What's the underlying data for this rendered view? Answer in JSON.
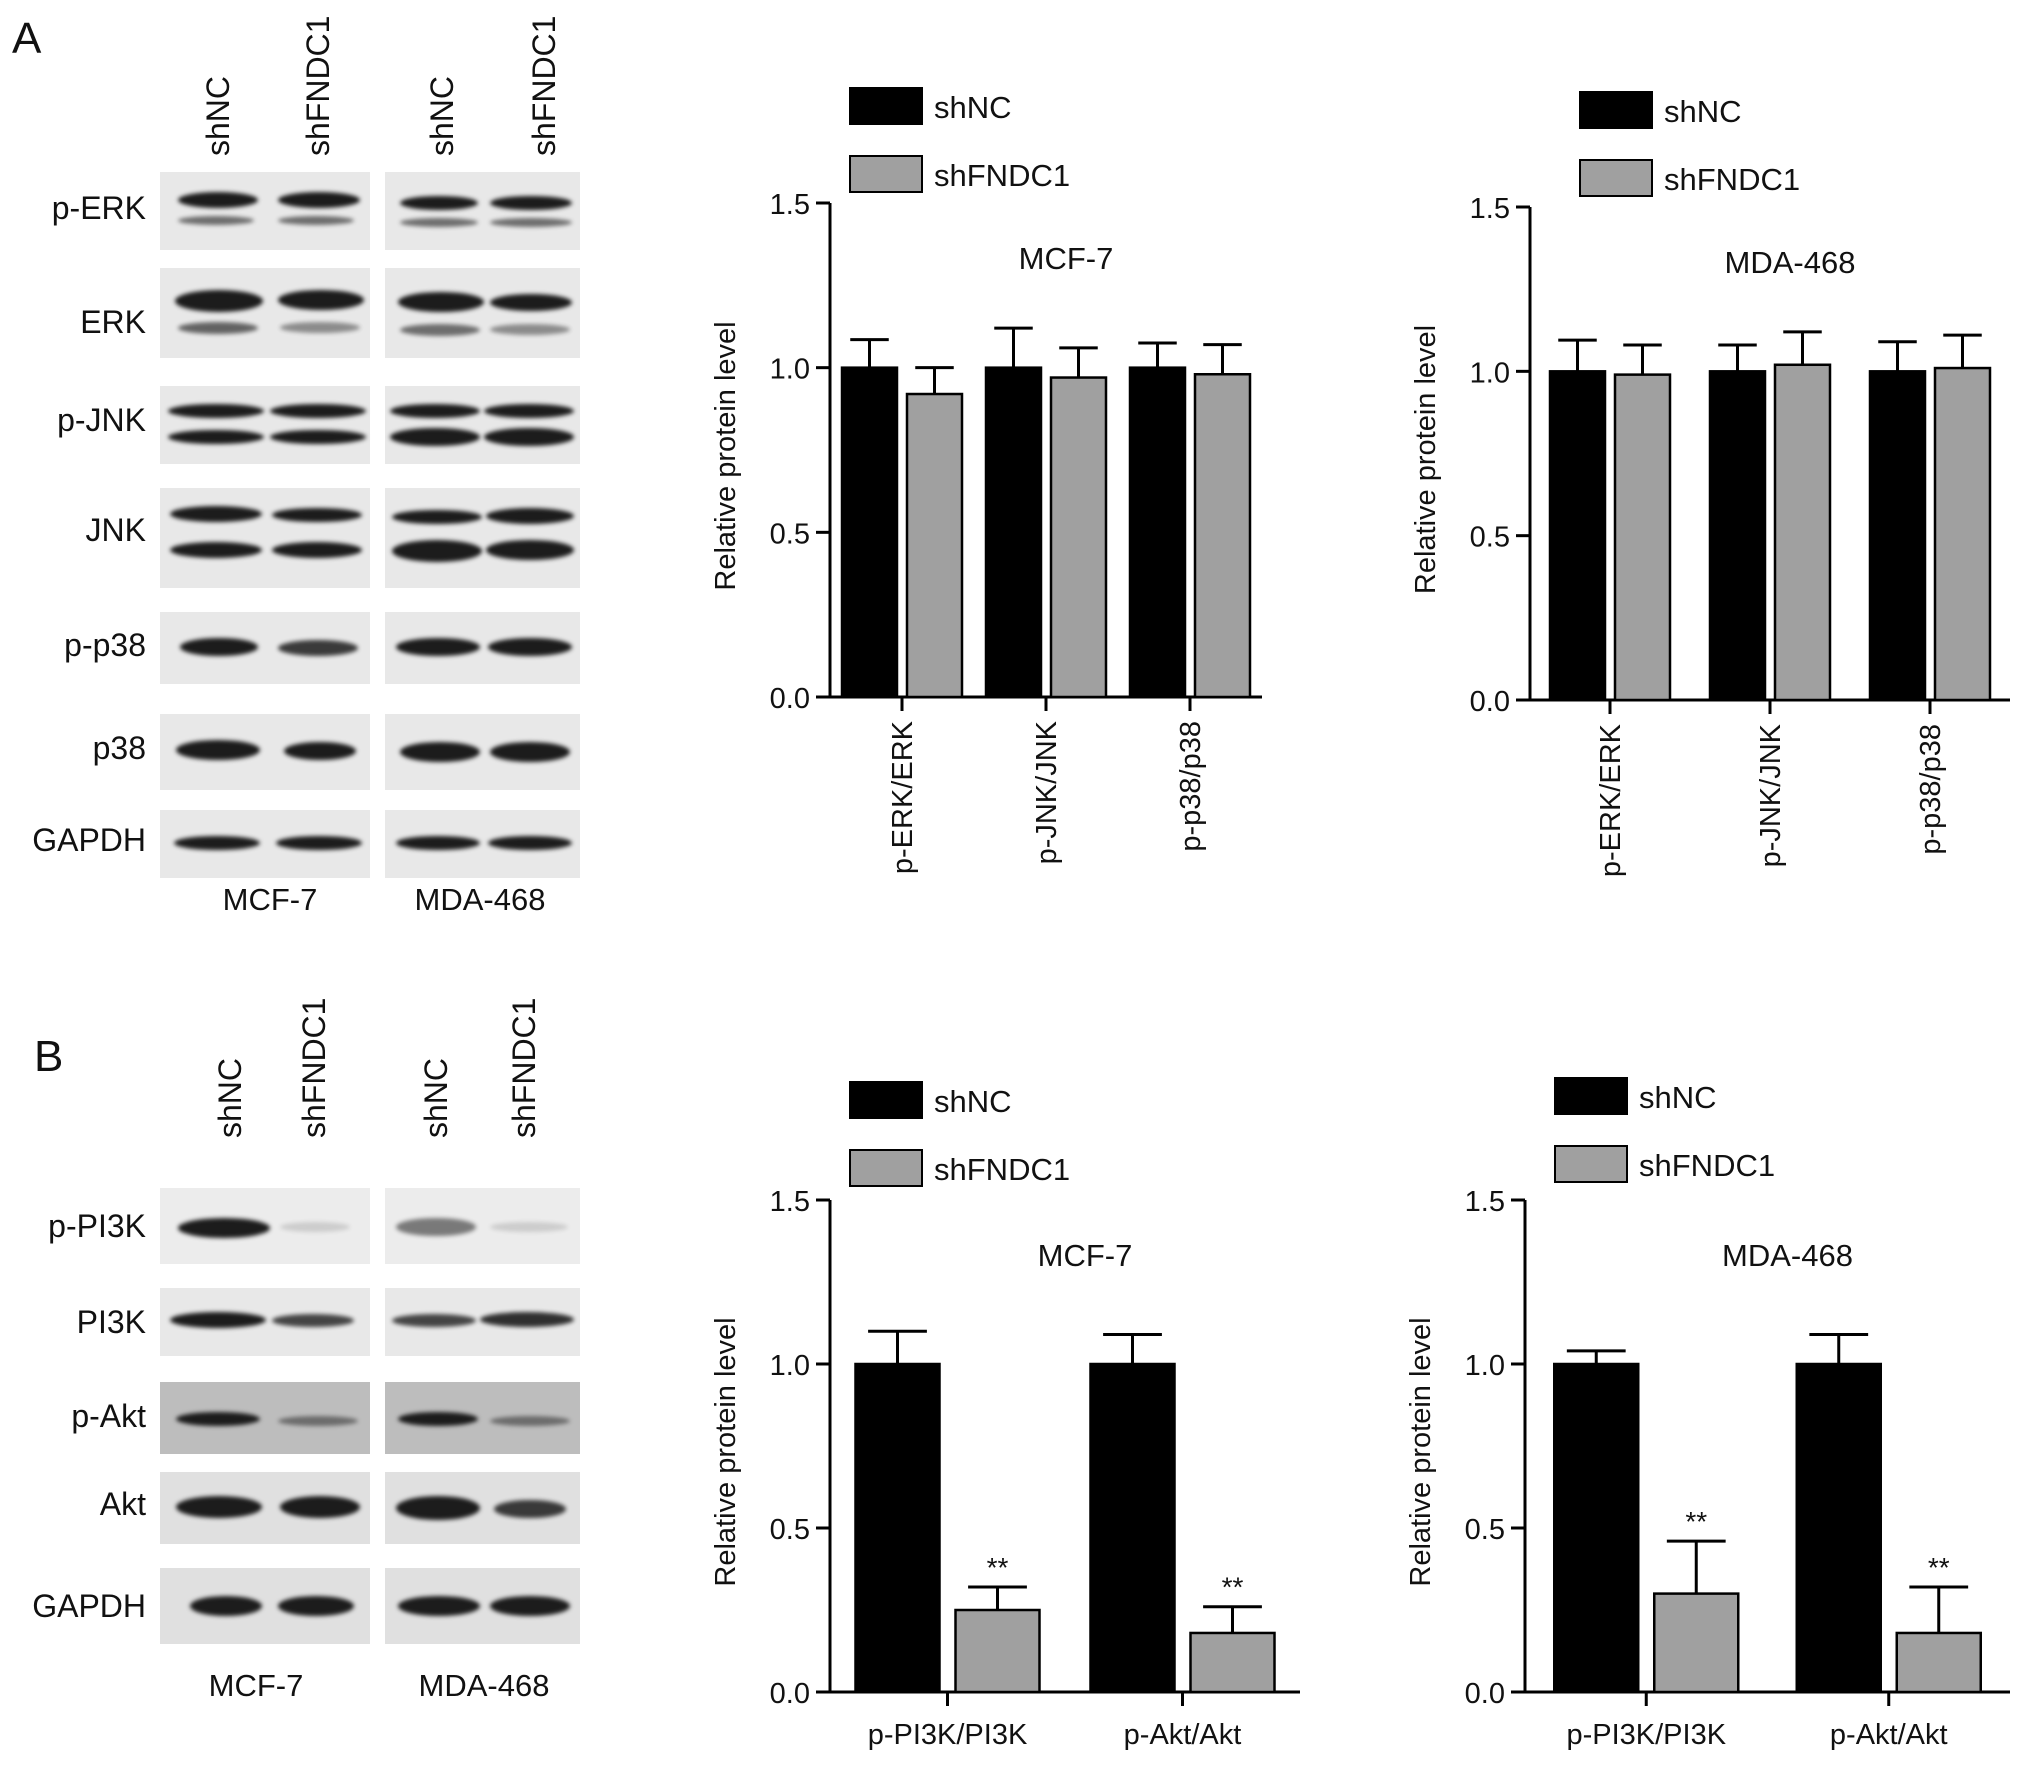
{
  "panels": [
    {
      "letter": "A",
      "blot": {
        "lanes": [
          "shNC",
          "shFNDC1",
          "shNC",
          "shFNDC1"
        ],
        "rows": [
          "p-ERK",
          "ERK",
          "p-JNK",
          "JNK",
          "p-p38",
          "p38",
          "GAPDH"
        ],
        "cell_lines": [
          "MCF-7",
          "MDA-468"
        ]
      }
    },
    {
      "letter": "B",
      "blot": {
        "lanes": [
          "shNC",
          "shFNDC1",
          "shNC",
          "shFNDC1"
        ],
        "rows": [
          "p-PI3K",
          "PI3K",
          "p-Akt",
          "Akt",
          "GAPDH"
        ],
        "cell_lines": [
          "MCF-7",
          "MDA-468"
        ]
      }
    }
  ],
  "colors": {
    "shNC": "#000000",
    "shFNDC1": "#a0a0a0"
  },
  "chart_data": [
    {
      "type": "bar",
      "title": "MCF-7",
      "ylabel": "Relative protein level",
      "xlabel": "",
      "categories": [
        "p-ERK/ERK",
        "p-JNK/JNK",
        "p-p38/p38"
      ],
      "series": [
        {
          "name": "shNC",
          "values": [
            1.0,
            1.0,
            1.0
          ],
          "errors": [
            0.085,
            0.12,
            0.075
          ],
          "stars": [
            "",
            "",
            ""
          ]
        },
        {
          "name": "shFNDC1",
          "values": [
            0.92,
            0.97,
            0.98
          ],
          "errors": [
            0.08,
            0.09,
            0.09
          ],
          "stars": [
            "",
            "",
            ""
          ]
        }
      ],
      "ylim": [
        0,
        1.5
      ],
      "yticks": [
        "0.0",
        "0.5",
        "1.0",
        "1.5"
      ],
      "x_tick_rotation": "vertical",
      "legend": "top"
    },
    {
      "type": "bar",
      "title": "MDA-468",
      "ylabel": "Relative protein level",
      "xlabel": "",
      "categories": [
        "p-ERK/ERK",
        "p-JNK/JNK",
        "p-p38/p38"
      ],
      "series": [
        {
          "name": "shNC",
          "values": [
            1.0,
            1.0,
            1.0
          ],
          "errors": [
            0.095,
            0.08,
            0.09
          ],
          "stars": [
            "",
            "",
            ""
          ]
        },
        {
          "name": "shFNDC1",
          "values": [
            0.99,
            1.02,
            1.01
          ],
          "errors": [
            0.09,
            0.1,
            0.1
          ],
          "stars": [
            "",
            "",
            ""
          ]
        }
      ],
      "ylim": [
        0,
        1.5
      ],
      "yticks": [
        "0.0",
        "0.5",
        "1.0",
        "1.5"
      ],
      "x_tick_rotation": "vertical",
      "legend": "top"
    },
    {
      "type": "bar",
      "title": "MCF-7",
      "ylabel": "Relative protein level",
      "xlabel": "",
      "categories": [
        "p-PI3K/PI3K",
        "p-Akt/Akt"
      ],
      "series": [
        {
          "name": "shNC",
          "values": [
            1.0,
            1.0
          ],
          "errors": [
            0.1,
            0.09
          ],
          "stars": [
            "",
            ""
          ]
        },
        {
          "name": "shFNDC1",
          "values": [
            0.25,
            0.18
          ],
          "errors": [
            0.07,
            0.08
          ],
          "stars": [
            "**",
            "**"
          ]
        }
      ],
      "ylim": [
        0,
        1.5
      ],
      "yticks": [
        "0.0",
        "0.5",
        "1.0",
        "1.5"
      ],
      "x_tick_rotation": "horizontal",
      "legend": "top"
    },
    {
      "type": "bar",
      "title": "MDA-468",
      "ylabel": "Relative protein level",
      "xlabel": "",
      "categories": [
        "p-PI3K/PI3K",
        "p-Akt/Akt"
      ],
      "series": [
        {
          "name": "shNC",
          "values": [
            1.0,
            1.0
          ],
          "errors": [
            0.04,
            0.09
          ],
          "stars": [
            "",
            ""
          ]
        },
        {
          "name": "shFNDC1",
          "values": [
            0.3,
            0.18
          ],
          "errors": [
            0.16,
            0.14
          ],
          "stars": [
            "**",
            "**"
          ]
        }
      ],
      "ylim": [
        0,
        1.5
      ],
      "yticks": [
        "0.0",
        "0.5",
        "1.0",
        "1.5"
      ],
      "x_tick_rotation": "horizontal",
      "legend": "top"
    }
  ]
}
